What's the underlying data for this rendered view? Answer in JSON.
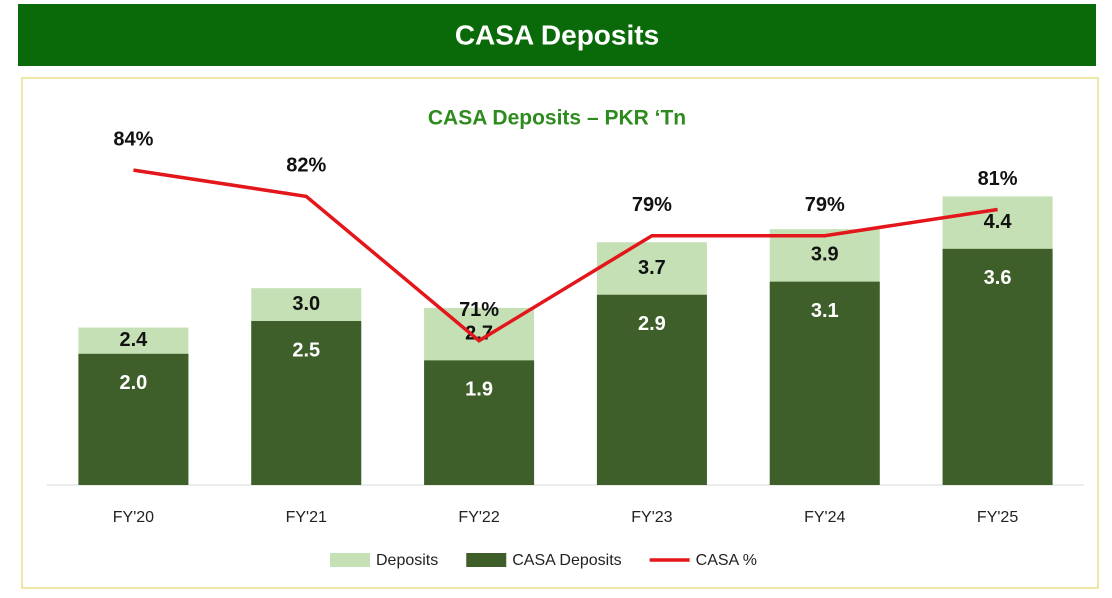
{
  "header": {
    "title": "CASA Deposits"
  },
  "chart_data": {
    "type": "bar",
    "title": "CASA Deposits – PKR ‘Tn",
    "categories": [
      "FY'20",
      "FY'21",
      "FY'22",
      "FY'23",
      "FY'24",
      "FY'25"
    ],
    "series": [
      {
        "name": "Deposits",
        "type": "bar",
        "color": "#c5e0b4",
        "values": [
          2.4,
          3.0,
          2.7,
          3.7,
          3.9,
          4.4
        ],
        "value_labels": [
          "2.4",
          "3.0",
          "2.7",
          "3.7",
          "3.9",
          "4.4"
        ]
      },
      {
        "name": "CASA Deposits",
        "type": "bar",
        "color": "#3f5f2a",
        "values": [
          2.0,
          2.5,
          1.9,
          2.9,
          3.1,
          3.6
        ],
        "value_labels": [
          "2.0",
          "2.5",
          "1.9",
          "2.9",
          "3.1",
          "3.6"
        ]
      },
      {
        "name": "CASA %",
        "type": "line",
        "axis": "y2",
        "color": "#e3161b",
        "values": [
          84,
          82,
          71,
          79,
          79,
          81
        ],
        "value_labels": [
          "84%",
          "82%",
          "71%",
          "79%",
          "79%",
          "81%"
        ]
      }
    ],
    "ylim": [
      0,
      5
    ],
    "y2lim": [
      60,
      85
    ],
    "legend": "bottom"
  }
}
